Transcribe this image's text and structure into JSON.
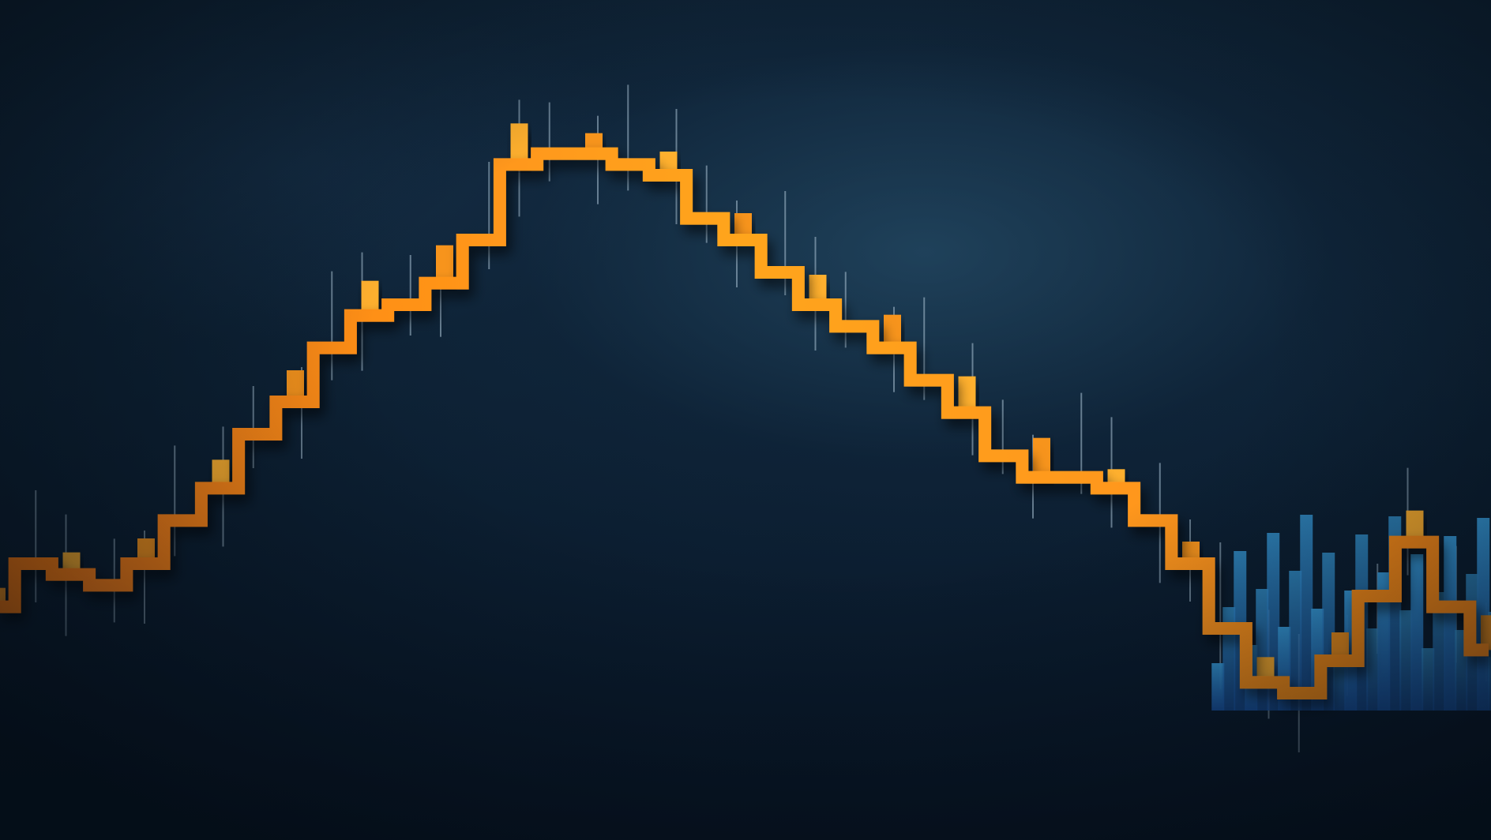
{
  "scene": {
    "kind": "decorative-stock-chart-illustration",
    "text": ""
  },
  "colors": {
    "background": "#0c1b2b",
    "orange_line": "#f7941d",
    "orange_light": "#ffb02e",
    "blue_bars": "#2e8fd8",
    "blue_dark": "#1c5fb3",
    "wick": "#9fb7c9"
  },
  "chart_data": {
    "type": "line",
    "title": "",
    "xlabel": "",
    "ylabel": "",
    "grid": false,
    "legend": "none",
    "x": [
      0,
      1,
      2,
      3,
      4,
      5,
      6,
      7,
      8,
      9,
      10,
      11,
      12,
      13,
      14,
      15,
      16,
      17,
      18,
      19,
      20,
      21,
      22,
      23,
      24,
      25,
      26,
      27,
      28,
      29,
      30,
      31,
      32,
      33,
      34,
      35,
      36,
      37,
      38,
      39,
      40
    ],
    "series": [
      {
        "values": [
          14,
          18,
          17,
          16,
          18,
          22,
          25,
          30,
          33,
          38,
          41,
          42,
          44,
          48,
          55,
          56,
          56,
          55,
          54,
          50,
          48,
          45,
          42,
          40,
          38,
          35,
          32,
          28,
          26,
          26,
          25,
          22,
          18,
          12,
          7,
          6,
          9,
          15,
          20,
          14,
          10
        ]
      }
    ],
    "ylim": [
      0,
      60
    ]
  }
}
